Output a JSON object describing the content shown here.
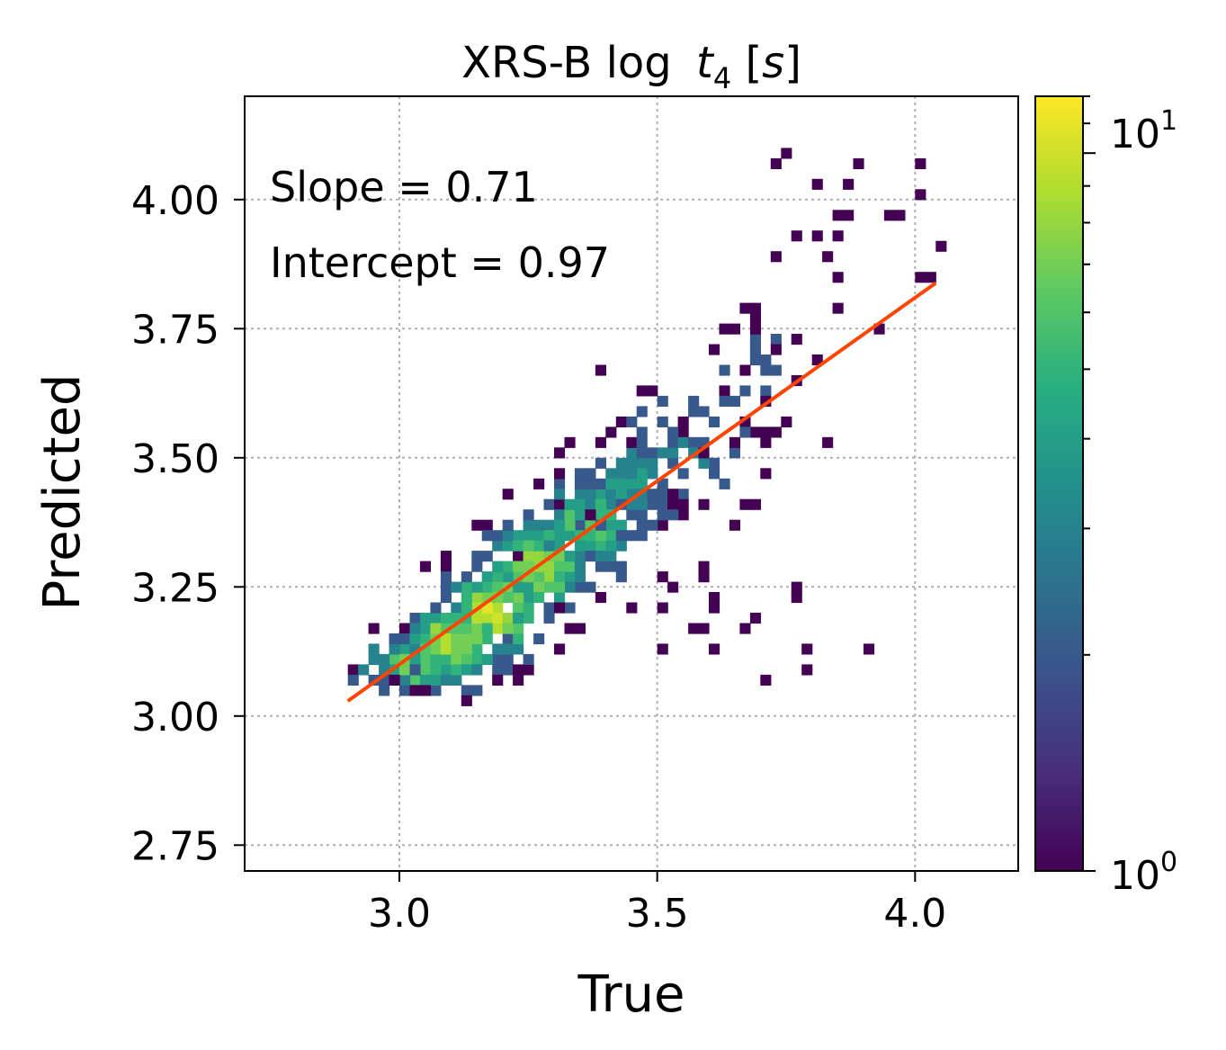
{
  "chart_data": {
    "type": "heatmap",
    "subtype": "2d-histogram-with-fit-line",
    "title": "XRS-B log  t₄ [s]",
    "title_parts": {
      "prefix": "XRS-B log ",
      "var": "t",
      "sub": "4",
      "unit_open": " [",
      "unit": "s",
      "unit_close": "]"
    },
    "xlabel": "True",
    "ylabel": "Predicted",
    "xlim": [
      2.7,
      4.2
    ],
    "ylim": [
      2.7,
      4.2
    ],
    "xticks": [
      3.0,
      3.5,
      4.0
    ],
    "xtick_labels": [
      "3.0",
      "3.5",
      "4.0"
    ],
    "yticks": [
      2.75,
      3.0,
      3.25,
      3.5,
      3.75,
      4.0
    ],
    "ytick_labels": [
      "2.75",
      "3.00",
      "3.25",
      "3.50",
      "3.75",
      "4.00"
    ],
    "grid": true,
    "annotations": [
      "Slope = 0.71",
      "Intercept = 0.97"
    ],
    "fit_line": {
      "slope": 0.71,
      "intercept": 0.97,
      "x_range": [
        2.9,
        4.04
      ],
      "color": "#ff4500"
    },
    "colorbar": {
      "scale": "log",
      "colormap": "viridis",
      "range": [
        1,
        12
      ],
      "tick_labels": [
        {
          "value": 1,
          "base": "10",
          "exp": "0"
        },
        {
          "value": 10,
          "base": "10",
          "exp": "1"
        }
      ]
    },
    "bins": {
      "dx": 0.02,
      "dy": 0.02
    },
    "clusters": [
      {
        "cx": 3.02,
        "cy": 3.1,
        "sx": 0.05,
        "sy": 0.03,
        "n": 70,
        "peak": 7
      },
      {
        "cx": 3.1,
        "cy": 3.14,
        "sx": 0.05,
        "sy": 0.04,
        "n": 140,
        "peak": 9
      },
      {
        "cx": 3.18,
        "cy": 3.2,
        "sx": 0.05,
        "sy": 0.05,
        "n": 160,
        "peak": 10
      },
      {
        "cx": 3.27,
        "cy": 3.29,
        "sx": 0.06,
        "sy": 0.05,
        "n": 170,
        "peak": 8
      },
      {
        "cx": 3.36,
        "cy": 3.37,
        "sx": 0.06,
        "sy": 0.05,
        "n": 120,
        "peak": 6
      },
      {
        "cx": 3.45,
        "cy": 3.45,
        "sx": 0.06,
        "sy": 0.05,
        "n": 80,
        "peak": 4
      },
      {
        "cx": 3.55,
        "cy": 3.52,
        "sx": 0.07,
        "sy": 0.07,
        "n": 55,
        "peak": 3
      },
      {
        "cx": 3.68,
        "cy": 3.65,
        "sx": 0.07,
        "sy": 0.09,
        "n": 40,
        "peak": 2
      },
      {
        "cx": 3.55,
        "cy": 3.22,
        "sx": 0.15,
        "sy": 0.1,
        "n": 35,
        "peak": 1
      },
      {
        "cx": 3.88,
        "cy": 3.95,
        "sx": 0.08,
        "sy": 0.12,
        "n": 25,
        "peak": 1
      }
    ],
    "colors": {
      "fit": "#ff4500",
      "grid": "#b0b0b0",
      "axes": "#000000"
    }
  }
}
